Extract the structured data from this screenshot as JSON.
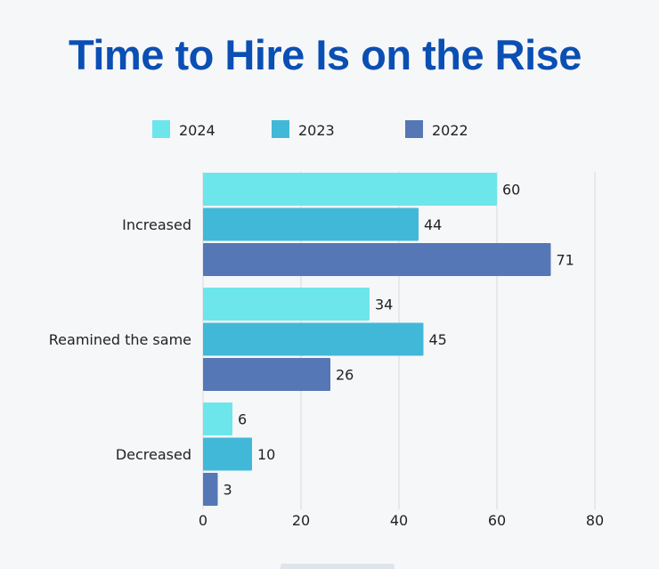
{
  "title": "Time to Hire Is on the Rise",
  "colors": {
    "title": "#0a4fb3",
    "series_2024": "#6ce6ea",
    "series_2023": "#42b8d8",
    "series_2022": "#5577b5",
    "grid": "#d6d9de",
    "text": "#222222"
  },
  "chart_data": {
    "type": "bar",
    "orientation": "horizontal",
    "title": "Time to Hire Is on the Rise",
    "categories": [
      "Increased",
      "Reamined the same",
      "Decreased"
    ],
    "series": [
      {
        "name": "2024",
        "values": [
          60,
          34,
          6
        ]
      },
      {
        "name": "2023",
        "values": [
          44,
          45,
          10
        ]
      },
      {
        "name": "2022",
        "values": [
          71,
          26,
          3
        ]
      }
    ],
    "xlim": [
      0,
      80
    ],
    "xticks": [
      "0",
      "20",
      "40",
      "60",
      "80"
    ],
    "xlabel": "",
    "ylabel": "",
    "grid": true,
    "legend": "top-center"
  }
}
